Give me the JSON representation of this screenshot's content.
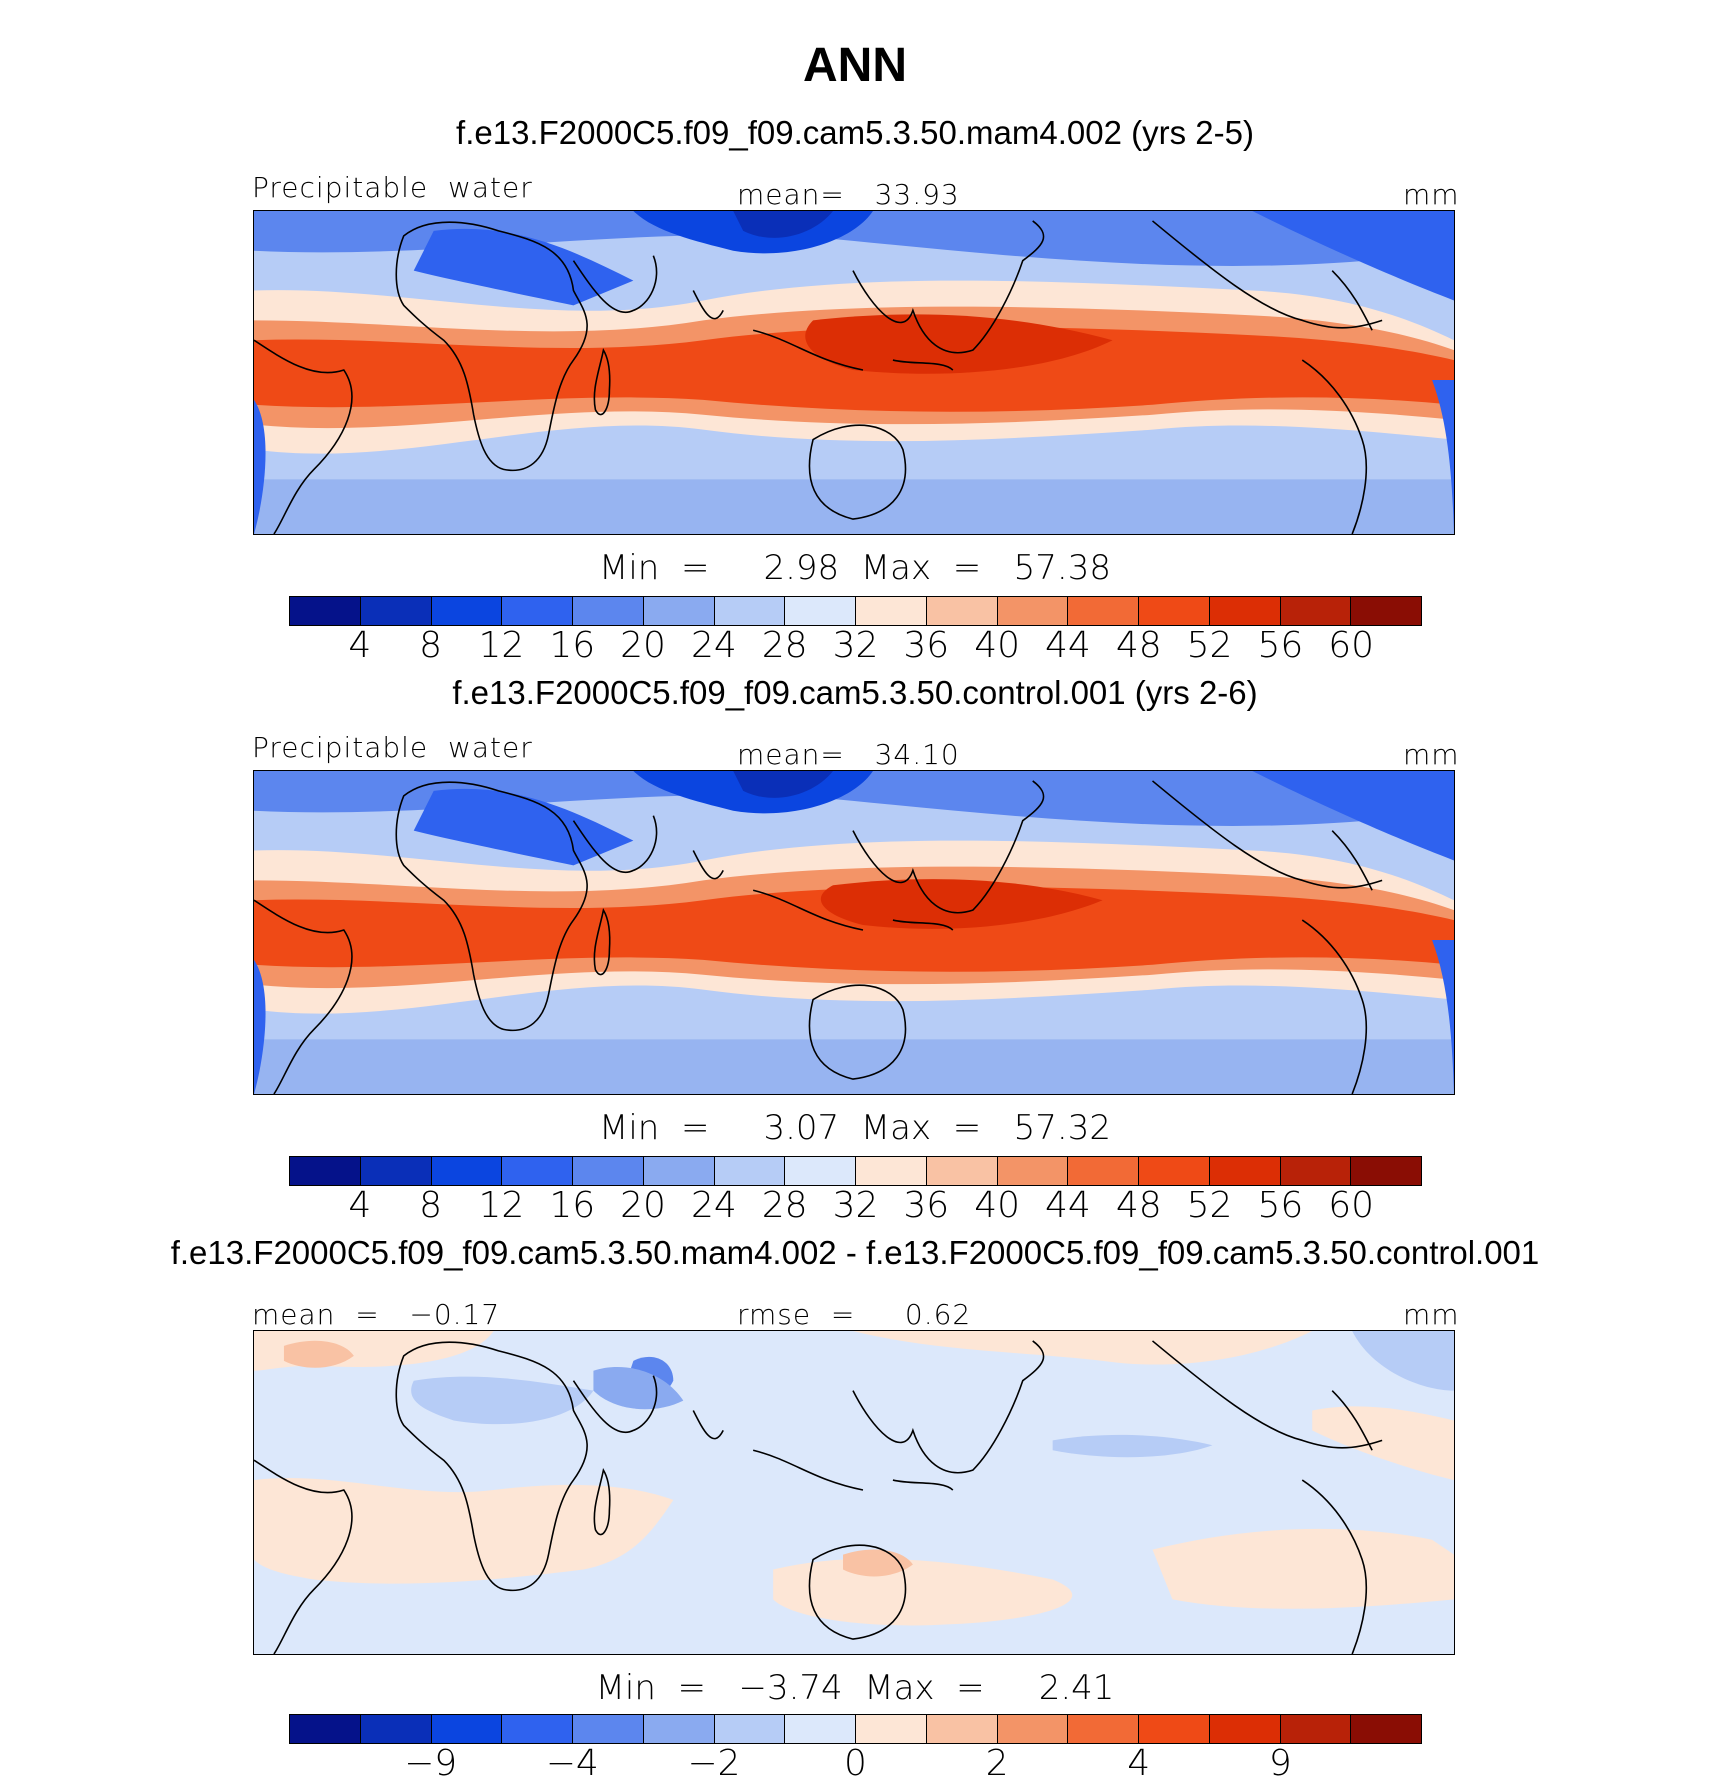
{
  "figure": {
    "title": "ANN"
  },
  "colors": {
    "palette12": [
      "#05128a",
      "#0a2fb8",
      "#0b45e0",
      "#2f62ef",
      "#5c86ee",
      "#8aaaf0",
      "#b6ccf6",
      "#dce8fb",
      "#fde6d6",
      "#f9c2a4",
      "#f39467",
      "#f26a36",
      "#ef4a16",
      "#dc2e05",
      "#b82208",
      "#8a0d04"
    ]
  },
  "panels": [
    {
      "id": "mam4",
      "case_title": "f.e13.F2000C5.f09_f09.cam5.3.50.mam4.002 (yrs 2-5)",
      "left_label": "Precipitable  water",
      "center_label": "mean=   33.93",
      "units": "mm",
      "stats": "Min  =     2.98  Max  =   57.38",
      "colorbar_ticks": [
        "4",
        "8",
        "12",
        "16",
        "20",
        "24",
        "28",
        "32",
        "36",
        "40",
        "44",
        "48",
        "52",
        "56",
        "60"
      ],
      "map_type": "absolute"
    },
    {
      "id": "control",
      "case_title": "f.e13.F2000C5.f09_f09.cam5.3.50.control.001 (yrs 2-6)",
      "left_label": "Precipitable  water",
      "center_label": "mean=   34.10",
      "units": "mm",
      "stats": "Min  =     3.07  Max  =   57.32",
      "colorbar_ticks": [
        "4",
        "8",
        "12",
        "16",
        "20",
        "24",
        "28",
        "32",
        "36",
        "40",
        "44",
        "48",
        "52",
        "56",
        "60"
      ],
      "map_type": "absolute"
    },
    {
      "id": "diff",
      "case_title": "f.e13.F2000C5.f09_f09.cam5.3.50.mam4.002 - f.e13.F2000C5.f09_f09.cam5.3.50.control.001",
      "left_label": "mean  =   −0.17",
      "center_label": "rmse  =     0.62",
      "units": "mm",
      "stats": "Min  =   −3.74  Max  =     2.41",
      "colorbar_ticks": [
        "−9",
        "−4",
        "−2",
        "0",
        "2",
        "4",
        "9"
      ],
      "map_type": "difference"
    }
  ]
}
